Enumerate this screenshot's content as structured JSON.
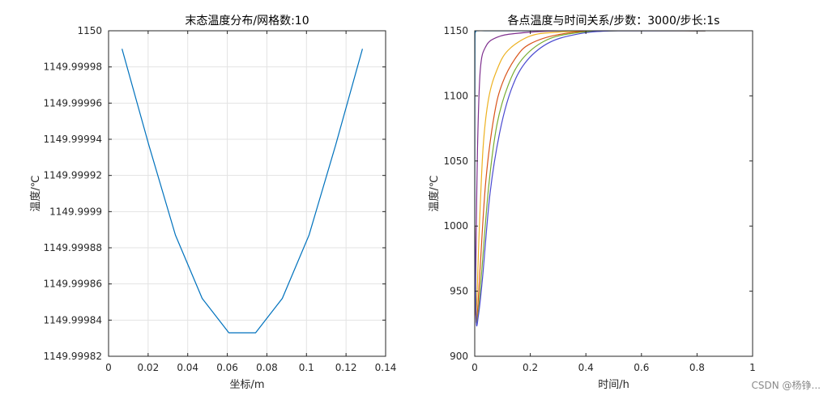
{
  "watermark": "CSDN @杨铮...",
  "chart_data": [
    {
      "type": "line",
      "title": "末态温度分布/网格数:10",
      "xlabel": "坐标/m",
      "ylabel": "温度/℃",
      "xlim": [
        0,
        0.14
      ],
      "ylim": [
        1149.99982,
        1150
      ],
      "xticks": [
        0,
        0.02,
        0.04,
        0.06,
        0.08,
        0.1,
        0.12,
        0.14
      ],
      "xticklabels": [
        "0",
        "0.02",
        "0.04",
        "0.06",
        "0.08",
        "0.1",
        "0.12",
        "0.14"
      ],
      "yticks": [
        1149.99982,
        1149.99984,
        1149.99986,
        1149.99988,
        1149.9999,
        1149.99992,
        1149.99994,
        1149.99996,
        1149.99998,
        1150
      ],
      "yticklabels": [
        "1149.99982",
        "1149.99984",
        "1149.99986",
        "1149.99988",
        "1149.9999",
        "1149.99992",
        "1149.99994",
        "1149.99996",
        "1149.99998",
        "1150"
      ],
      "grid": true,
      "series": [
        {
          "color": "#0072bd",
          "x": [
            0.0068,
            0.0203,
            0.0338,
            0.0473,
            0.0608,
            0.0743,
            0.0878,
            0.1013,
            0.1148,
            0.1283
          ],
          "y": [
            1149.99999,
            1149.999937,
            1149.999887,
            1149.999852,
            1149.999833,
            1149.999833,
            1149.999852,
            1149.999887,
            1149.999937,
            1149.99999
          ]
        }
      ]
    },
    {
      "type": "line",
      "title": "各点温度与时间关系/步数：3000/步长:1s",
      "xlabel": "时间/h",
      "ylabel": "温度/℃",
      "xlim": [
        0,
        1
      ],
      "ylim": [
        900,
        1150
      ],
      "xticks": [
        0,
        0.2,
        0.4,
        0.6,
        0.8,
        1
      ],
      "xticklabels": [
        "0",
        "0.2",
        "0.4",
        "0.6",
        "0.8",
        "1"
      ],
      "yticks": [
        900,
        950,
        1000,
        1050,
        1100,
        1150
      ],
      "yticklabels": [
        "900",
        "950",
        "1000",
        "1050",
        "1100",
        "1150"
      ],
      "grid": false,
      "series": [
        {
          "color": "#0072bd",
          "x": [
            0,
            0.0008,
            0.003,
            0.01,
            0.05,
            0.2,
            0.5,
            0.83
          ],
          "y": [
            1000,
            1140,
            1149,
            1150,
            1150,
            1150,
            1150,
            1150
          ]
        },
        {
          "color": "#7e2f8e",
          "x": [
            0,
            0.002,
            0.005,
            0.01,
            0.02,
            0.04,
            0.08,
            0.15,
            0.3,
            0.5,
            0.83
          ],
          "y": [
            1000,
            945,
            985,
            1060,
            1120,
            1138,
            1145,
            1148,
            1150,
            1150,
            1150
          ]
        },
        {
          "color": "#edb120",
          "x": [
            0,
            0.003,
            0.008,
            0.015,
            0.03,
            0.05,
            0.08,
            0.12,
            0.2,
            0.3,
            0.45,
            0.83
          ],
          "y": [
            1000,
            935,
            945,
            990,
            1060,
            1098,
            1120,
            1135,
            1146,
            1149,
            1150,
            1150
          ]
        },
        {
          "color": "#d95319",
          "x": [
            0,
            0.004,
            0.01,
            0.02,
            0.04,
            0.07,
            0.1,
            0.15,
            0.2,
            0.3,
            0.45,
            0.83
          ],
          "y": [
            1000,
            931,
            935,
            970,
            1035,
            1085,
            1110,
            1130,
            1140,
            1147,
            1150,
            1150
          ]
        },
        {
          "color": "#77ac30",
          "x": [
            0,
            0.005,
            0.012,
            0.025,
            0.05,
            0.08,
            0.12,
            0.17,
            0.25,
            0.35,
            0.5,
            0.83
          ],
          "y": [
            1000,
            930,
            932,
            965,
            1030,
            1078,
            1108,
            1128,
            1142,
            1148,
            1150,
            1150
          ]
        },
        {
          "color": "#4a4ad0",
          "x": [
            0,
            0.005,
            0.013,
            0.028,
            0.055,
            0.09,
            0.13,
            0.18,
            0.26,
            0.36,
            0.5,
            0.83
          ],
          "y": [
            1000,
            929,
            931,
            960,
            1025,
            1072,
            1104,
            1125,
            1140,
            1147,
            1150,
            1150
          ]
        }
      ]
    }
  ]
}
